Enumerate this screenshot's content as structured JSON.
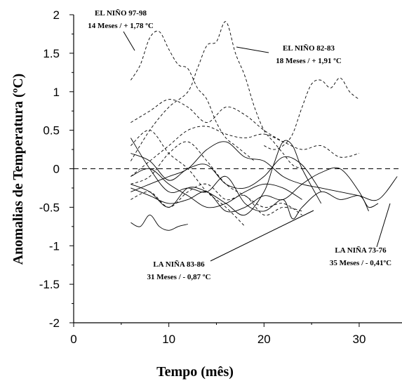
{
  "chart_data": {
    "type": "line",
    "xlabel": "Tempo (mês)",
    "ylabel": "Anomalias de Temperatura (ºC)",
    "xlim": [
      0,
      34.5
    ],
    "ylim": [
      -2,
      2
    ],
    "x_ticks": [
      "0",
      "10",
      "20",
      "30"
    ],
    "y_ticks": [
      "2",
      "1.5",
      "1",
      "0.5",
      "0",
      "-0.5",
      "-1",
      "-1.5",
      "-2"
    ],
    "zero_line": true,
    "line_color": "#000000",
    "annotations": [
      {
        "line1": "EL NIÑO 97-98",
        "line2": "14 Meses / + 1,78 ºC"
      },
      {
        "line1": "EL NIÑO 82-83",
        "line2": "18 Meses / + 1,91 ºC"
      },
      {
        "line1": "LA NIÑA 83-86",
        "line2": "31 Meses / - 0,87 ºC"
      },
      {
        "line1": "LA NIÑA 73-76",
        "line2": "35 Meses / - 0,41ºC"
      }
    ],
    "series": [
      {
        "style": "dashed",
        "x": [
          6,
          7,
          8,
          9,
          10,
          11,
          12,
          13,
          14,
          15,
          16,
          17,
          18,
          19
        ],
        "y": [
          1.15,
          1.35,
          1.7,
          1.78,
          1.55,
          1.35,
          1.3,
          1.05,
          0.9,
          0.6,
          0.4,
          0.3,
          0.2,
          0.1
        ]
      },
      {
        "style": "dashed",
        "x": [
          6,
          8,
          10,
          12,
          13,
          14,
          15,
          16,
          17,
          18,
          19,
          20,
          21,
          22,
          23,
          24
        ],
        "y": [
          0.1,
          0.5,
          0.8,
          1.0,
          1.3,
          1.6,
          1.65,
          1.91,
          1.5,
          1.2,
          0.8,
          0.5,
          0.35,
          0.2,
          0.05,
          0.0
        ]
      },
      {
        "style": "dashed",
        "x": [
          20,
          21,
          22,
          23,
          24,
          25,
          26,
          27,
          28,
          29,
          30
        ],
        "y": [
          0.3,
          0.25,
          0.3,
          0.45,
          0.8,
          1.1,
          1.15,
          1.05,
          1.18,
          1.0,
          0.9
        ]
      },
      {
        "style": "dashed",
        "x": [
          6,
          8,
          10,
          12,
          14,
          16,
          18,
          20,
          22
        ],
        "y": [
          0.6,
          0.75,
          0.9,
          0.8,
          0.6,
          0.8,
          0.7,
          0.5,
          0.35
        ]
      },
      {
        "style": "dashed",
        "x": [
          6,
          8,
          10,
          12,
          14,
          16,
          18,
          20,
          22,
          24,
          26,
          28,
          30
        ],
        "y": [
          -0.1,
          0.1,
          0.3,
          0.5,
          0.55,
          0.45,
          0.4,
          0.45,
          0.35,
          0.25,
          0.3,
          0.15,
          0.2
        ]
      },
      {
        "style": "dashed",
        "x": [
          6,
          8,
          10,
          12,
          14,
          16,
          18,
          20,
          22,
          24
        ],
        "y": [
          -0.2,
          -0.1,
          0.2,
          0.35,
          0.1,
          -0.2,
          -0.35,
          -0.5,
          -0.45,
          -0.6
        ]
      },
      {
        "style": "dashed",
        "x": [
          6,
          8,
          10,
          12,
          14,
          16,
          18
        ],
        "y": [
          0.3,
          0.5,
          0.2,
          0.0,
          -0.3,
          -0.5,
          -0.75
        ]
      },
      {
        "style": "dashed",
        "x": [
          6,
          8,
          10,
          12,
          14,
          16,
          18,
          20,
          22,
          24
        ],
        "y": [
          -0.4,
          -0.3,
          -0.5,
          -0.3,
          -0.2,
          -0.4,
          -0.35,
          -0.6,
          -0.5,
          -0.55
        ]
      },
      {
        "style": "solid",
        "x": [
          6,
          8,
          10,
          12,
          14,
          16,
          18,
          20,
          22,
          23,
          24,
          26,
          28,
          30,
          31,
          32
        ],
        "y": [
          0.4,
          0.0,
          -0.3,
          -0.25,
          -0.3,
          -0.1,
          -0.45,
          -0.55,
          -0.4,
          -0.65,
          -0.5,
          -0.3,
          -0.4,
          -0.35,
          -0.5,
          -0.45
        ]
      },
      {
        "style": "solid",
        "x": [
          6,
          8,
          10,
          12,
          14,
          16,
          18,
          20,
          21,
          22,
          23,
          24,
          26
        ],
        "y": [
          -0.2,
          -0.3,
          -0.5,
          -0.25,
          -0.3,
          -0.45,
          -0.6,
          -0.3,
          0.05,
          0.35,
          0.3,
          0.0,
          -0.45
        ]
      },
      {
        "style": "solid",
        "x": [
          6,
          8,
          10,
          12,
          14,
          16,
          18,
          20,
          22,
          24,
          26,
          28,
          30,
          32,
          34
        ],
        "y": [
          -0.3,
          -0.2,
          -0.1,
          0.0,
          0.25,
          0.35,
          0.15,
          0.1,
          -0.1,
          -0.2,
          -0.25,
          -0.3,
          -0.35,
          -0.4,
          -0.1
        ]
      },
      {
        "style": "solid",
        "x": [
          6,
          8,
          10,
          12,
          14,
          16,
          18,
          20,
          22,
          24
        ],
        "y": [
          -0.1,
          0.0,
          -0.2,
          -0.35,
          -0.5,
          -0.45,
          -0.3,
          -0.2,
          -0.25,
          -0.4
        ]
      },
      {
        "style": "solid",
        "x": [
          6,
          7,
          8,
          9,
          10,
          11,
          12
        ],
        "y": [
          -0.7,
          -0.75,
          -0.6,
          -0.75,
          -0.8,
          -0.75,
          -0.72
        ]
      },
      {
        "style": "solid",
        "x": [
          6,
          8,
          10,
          12,
          14,
          16,
          18,
          20,
          22,
          24,
          26,
          28,
          30,
          31
        ],
        "y": [
          -0.25,
          -0.35,
          -0.45,
          -0.4,
          -0.3,
          -0.55,
          -0.5,
          -0.35,
          -0.4,
          -0.2,
          -0.05,
          0.0,
          -0.3,
          -0.55
        ]
      },
      {
        "style": "solid",
        "x": [
          6,
          8,
          10,
          12,
          14,
          16,
          18,
          20,
          22,
          24,
          26
        ],
        "y": [
          0.2,
          0.1,
          -0.15,
          0.0,
          0.05,
          -0.2,
          -0.25,
          -0.1,
          0.15,
          0.05,
          -0.3
        ]
      }
    ]
  }
}
